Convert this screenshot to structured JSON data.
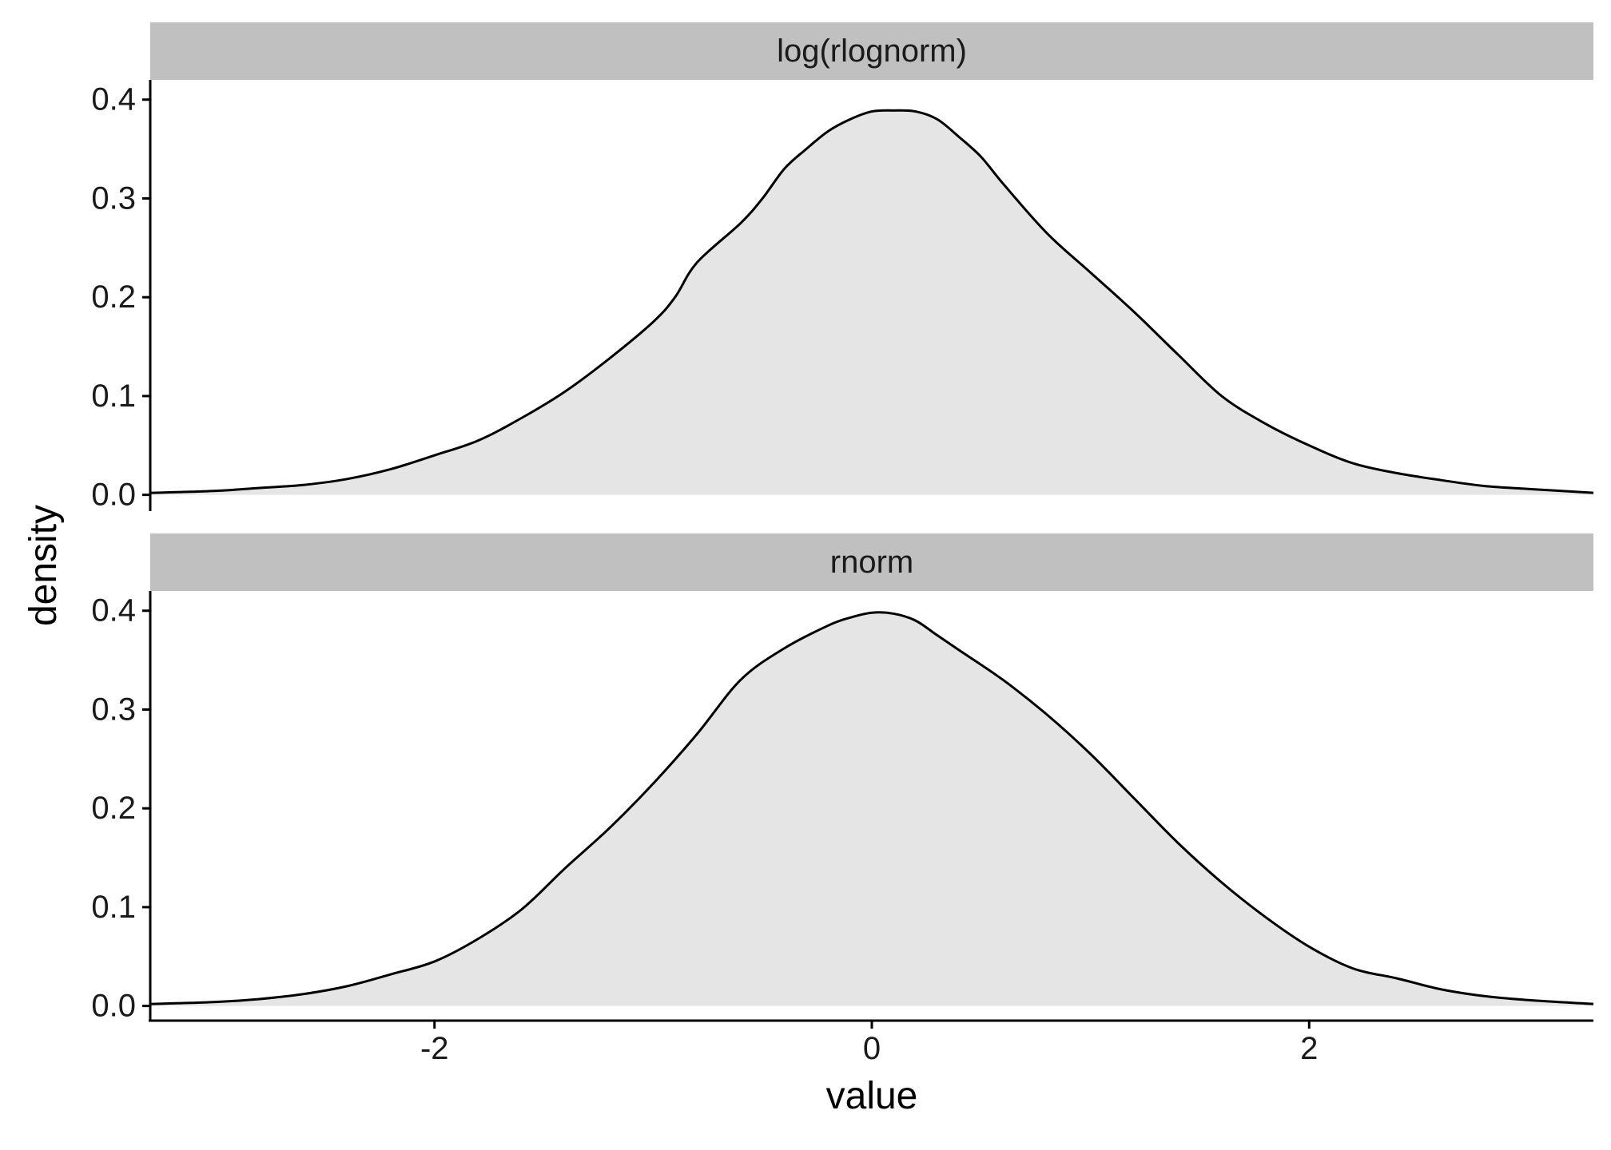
{
  "colors": {
    "strip_fill": "#c0c0c0",
    "density_fill": "#e5e5e5",
    "line": "#000000",
    "axis": "#000000",
    "background": "#ffffff"
  },
  "chart_data": {
    "type": "area",
    "chart_kind": "faceted density plot",
    "xlabel": "value",
    "ylabel": "density",
    "xlim": [
      -3.3,
      3.3
    ],
    "ylim": [
      -0.01,
      0.42
    ],
    "x_ticks": [
      -2,
      0,
      2
    ],
    "x_tick_labels": [
      "-2",
      "0",
      "2"
    ],
    "y_ticks": [
      0.0,
      0.1,
      0.2,
      0.3,
      0.4
    ],
    "y_tick_labels": [
      "0.0",
      "0.1",
      "0.2",
      "0.3",
      "0.4"
    ],
    "grid": false,
    "legend": "none",
    "panels": [
      {
        "strip_label": "log(rlognorm)",
        "series": {
          "x": [
            -3.3,
            -3.0,
            -2.8,
            -2.6,
            -2.4,
            -2.2,
            -2.0,
            -1.8,
            -1.6,
            -1.4,
            -1.2,
            -1.0,
            -0.9,
            -0.8,
            -0.6,
            -0.5,
            -0.4,
            -0.3,
            -0.2,
            -0.1,
            0.0,
            0.1,
            0.2,
            0.3,
            0.4,
            0.5,
            0.6,
            0.8,
            1.0,
            1.2,
            1.4,
            1.6,
            1.8,
            2.0,
            2.2,
            2.4,
            2.6,
            2.8,
            3.0,
            3.3
          ],
          "y": [
            0.002,
            0.004,
            0.007,
            0.01,
            0.016,
            0.026,
            0.04,
            0.055,
            0.078,
            0.105,
            0.138,
            0.175,
            0.2,
            0.235,
            0.275,
            0.3,
            0.33,
            0.35,
            0.368,
            0.38,
            0.388,
            0.389,
            0.388,
            0.38,
            0.362,
            0.342,
            0.315,
            0.265,
            0.225,
            0.185,
            0.142,
            0.1,
            0.072,
            0.05,
            0.032,
            0.022,
            0.015,
            0.009,
            0.006,
            0.002
          ]
        }
      },
      {
        "strip_label": "rnorm",
        "series": {
          "x": [
            -3.3,
            -3.0,
            -2.8,
            -2.6,
            -2.4,
            -2.2,
            -2.0,
            -1.8,
            -1.6,
            -1.4,
            -1.2,
            -1.0,
            -0.8,
            -0.6,
            -0.4,
            -0.2,
            -0.1,
            0.0,
            0.1,
            0.2,
            0.3,
            0.4,
            0.6,
            0.8,
            1.0,
            1.2,
            1.4,
            1.6,
            1.8,
            2.0,
            2.2,
            2.4,
            2.6,
            2.8,
            3.0,
            3.3
          ],
          "y": [
            0.002,
            0.004,
            0.007,
            0.012,
            0.02,
            0.032,
            0.045,
            0.068,
            0.098,
            0.14,
            0.18,
            0.225,
            0.275,
            0.33,
            0.362,
            0.385,
            0.393,
            0.398,
            0.397,
            0.39,
            0.375,
            0.36,
            0.33,
            0.295,
            0.255,
            0.21,
            0.165,
            0.125,
            0.09,
            0.06,
            0.038,
            0.028,
            0.017,
            0.01,
            0.006,
            0.002
          ]
        }
      }
    ]
  }
}
